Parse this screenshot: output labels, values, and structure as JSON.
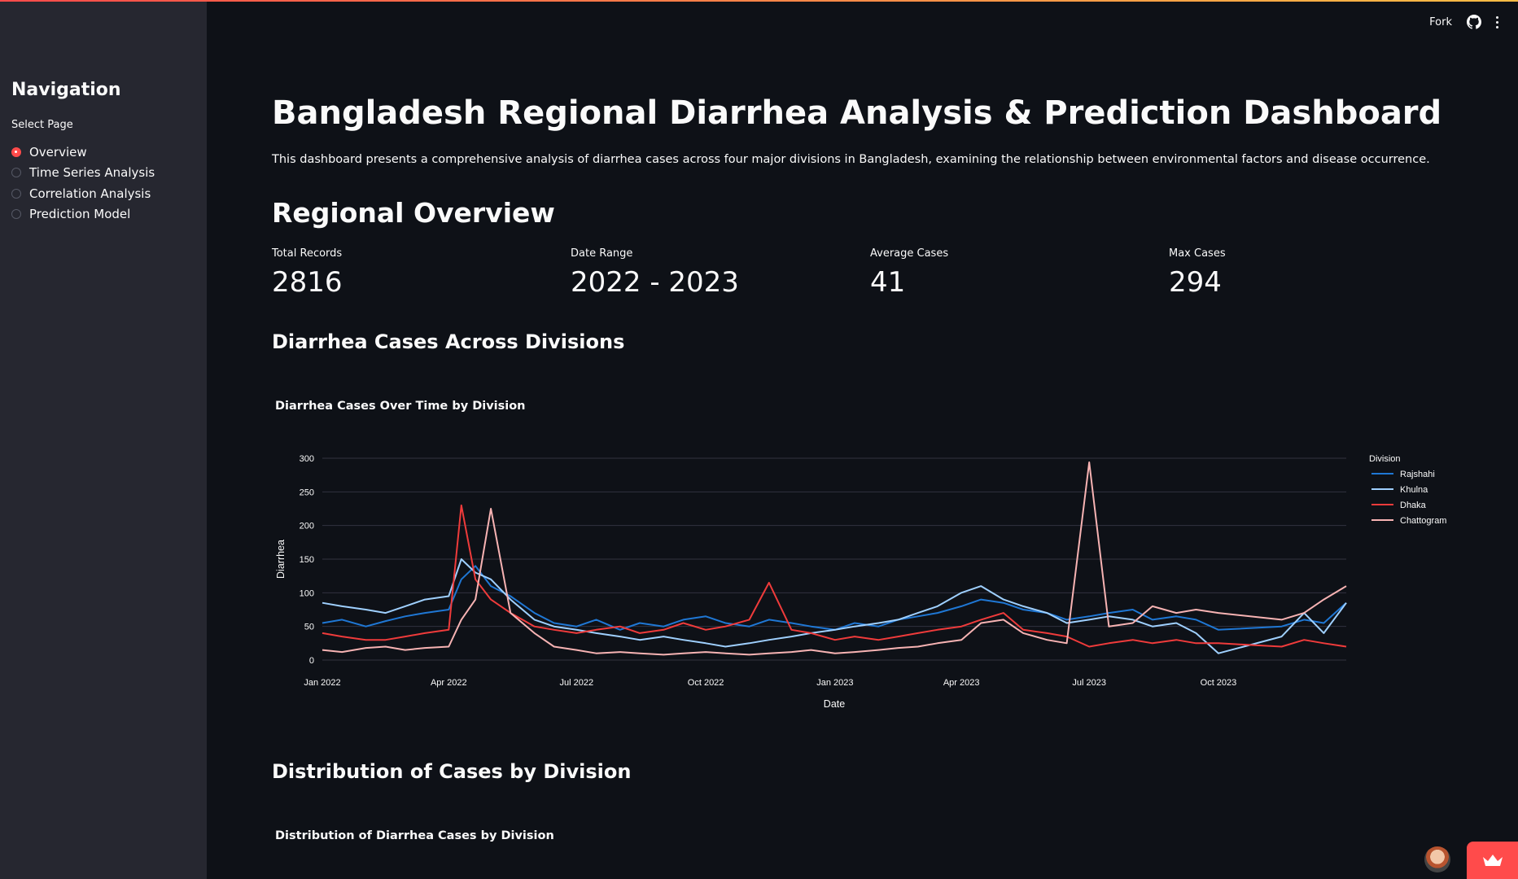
{
  "header": {
    "fork_label": "Fork",
    "icons": [
      "github-icon",
      "kebab-menu-icon"
    ]
  },
  "sidebar": {
    "title": "Navigation",
    "select_label": "Select Page",
    "options": [
      "Overview",
      "Time Series Analysis",
      "Correlation Analysis",
      "Prediction Model"
    ],
    "selected": "Overview"
  },
  "main": {
    "title": "Bangladesh Regional Diarrhea Analysis & Prediction Dashboard",
    "intro": "This dashboard presents a comprehensive analysis of diarrhea cases across four major divisions in Bangladesh, examining the relationship between environmental factors and disease occurrence.",
    "overview_heading": "Regional Overview",
    "metrics": [
      {
        "label": "Total Records",
        "value": "2816"
      },
      {
        "label": "Date Range",
        "value": "2022 - 2023"
      },
      {
        "label": "Average Cases",
        "value": "41"
      },
      {
        "label": "Max Cases",
        "value": "294"
      }
    ],
    "section_cases": "Diarrhea Cases Across Divisions",
    "section_distribution": "Distribution of Cases by Division",
    "distribution_chart_title": "Distribution of Diarrhea Cases by Division"
  },
  "colors": {
    "accent": "#ff4b4b",
    "Rajshahi": "#1f77d4",
    "Khulna": "#9fd0ff",
    "Dhaka": "#ef3b3b",
    "Chattogram": "#f7b3b3"
  },
  "chart_data": {
    "type": "line",
    "title": "Diarrhea Cases Over Time by Division",
    "xlabel": "Date",
    "ylabel": "Diarrhea",
    "ylim": [
      0,
      300
    ],
    "yticks": [
      0,
      50,
      100,
      150,
      200,
      250,
      300
    ],
    "x_ticks": [
      "Jan 2022",
      "Apr 2022",
      "Jul 2022",
      "Oct 2022",
      "Jan 2023",
      "Apr 2023",
      "Jul 2023",
      "Oct 2023"
    ],
    "legend_title": "Division",
    "legend_position": "right",
    "grid": true,
    "x": [
      "2022-01-01",
      "2022-01-15",
      "2022-02-01",
      "2022-02-15",
      "2022-03-01",
      "2022-03-15",
      "2022-04-01",
      "2022-04-10",
      "2022-04-20",
      "2022-05-01",
      "2022-05-15",
      "2022-06-01",
      "2022-06-15",
      "2022-07-01",
      "2022-07-15",
      "2022-08-01",
      "2022-08-15",
      "2022-09-01",
      "2022-09-15",
      "2022-10-01",
      "2022-10-15",
      "2022-11-01",
      "2022-11-15",
      "2022-12-01",
      "2022-12-15",
      "2023-01-01",
      "2023-01-15",
      "2023-02-01",
      "2023-02-15",
      "2023-03-01",
      "2023-03-15",
      "2023-04-01",
      "2023-04-15",
      "2023-05-01",
      "2023-05-15",
      "2023-06-01",
      "2023-06-15",
      "2023-07-01",
      "2023-07-15",
      "2023-08-01",
      "2023-08-15",
      "2023-09-01",
      "2023-09-15",
      "2023-10-01",
      "2023-11-15",
      "2023-12-01",
      "2023-12-15",
      "2023-12-31"
    ],
    "series": [
      {
        "name": "Rajshahi",
        "values": [
          55,
          60,
          50,
          58,
          65,
          70,
          75,
          120,
          140,
          110,
          95,
          70,
          55,
          50,
          60,
          45,
          55,
          50,
          60,
          65,
          55,
          50,
          60,
          55,
          50,
          45,
          55,
          50,
          60,
          65,
          70,
          80,
          90,
          85,
          75,
          70,
          60,
          65,
          70,
          75,
          60,
          65,
          60,
          45,
          50,
          60,
          55,
          85
        ]
      },
      {
        "name": "Khulna",
        "values": [
          85,
          80,
          75,
          70,
          80,
          90,
          95,
          150,
          130,
          120,
          90,
          60,
          50,
          45,
          40,
          35,
          30,
          35,
          30,
          25,
          20,
          25,
          30,
          35,
          40,
          45,
          50,
          55,
          60,
          70,
          80,
          100,
          110,
          90,
          80,
          70,
          55,
          60,
          65,
          60,
          50,
          55,
          40,
          10,
          35,
          70,
          40,
          85
        ]
      },
      {
        "name": "Dhaka",
        "values": [
          40,
          35,
          30,
          30,
          35,
          40,
          45,
          230,
          120,
          90,
          70,
          50,
          45,
          40,
          45,
          50,
          40,
          45,
          55,
          45,
          50,
          60,
          115,
          45,
          40,
          30,
          35,
          30,
          35,
          40,
          45,
          50,
          60,
          70,
          45,
          40,
          35,
          20,
          25,
          30,
          25,
          30,
          25,
          25,
          20,
          30,
          25,
          20
        ]
      },
      {
        "name": "Chattogram",
        "values": [
          15,
          12,
          18,
          20,
          15,
          18,
          20,
          60,
          90,
          225,
          70,
          40,
          20,
          15,
          10,
          12,
          10,
          8,
          10,
          12,
          10,
          8,
          10,
          12,
          15,
          10,
          12,
          15,
          18,
          20,
          25,
          30,
          55,
          60,
          40,
          30,
          25,
          294,
          50,
          55,
          80,
          70,
          75,
          70,
          60,
          70,
          90,
          110
        ]
      }
    ]
  }
}
